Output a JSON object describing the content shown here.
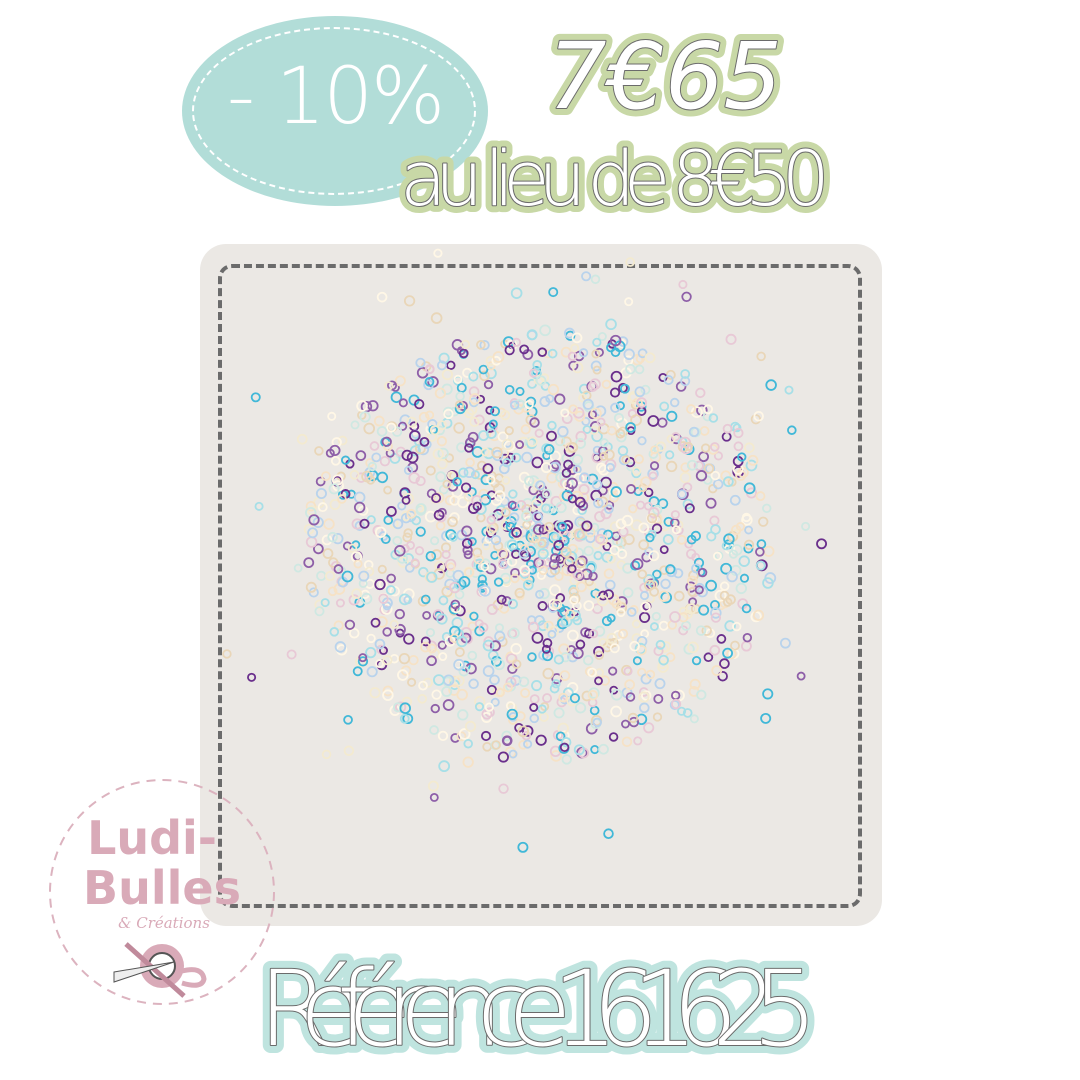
{
  "promo": {
    "discount": "- 10%",
    "new_price": "7€65",
    "old_price_text": "au lieu de 8€50"
  },
  "product": {
    "reference": "Référence 161625",
    "image": "sequin-confetti-pile"
  },
  "logo": {
    "line1": "Ludi-",
    "line2": "Bulles",
    "line3": "& Créations"
  },
  "colors": {
    "badge": "#b2ddd8",
    "price_outline": "#c8d8a6",
    "text_stroke": "#6b6b6b",
    "reference_outline": "#bfe4df",
    "logo_pink": "#d9aab8",
    "card": "#ebe8e4"
  }
}
